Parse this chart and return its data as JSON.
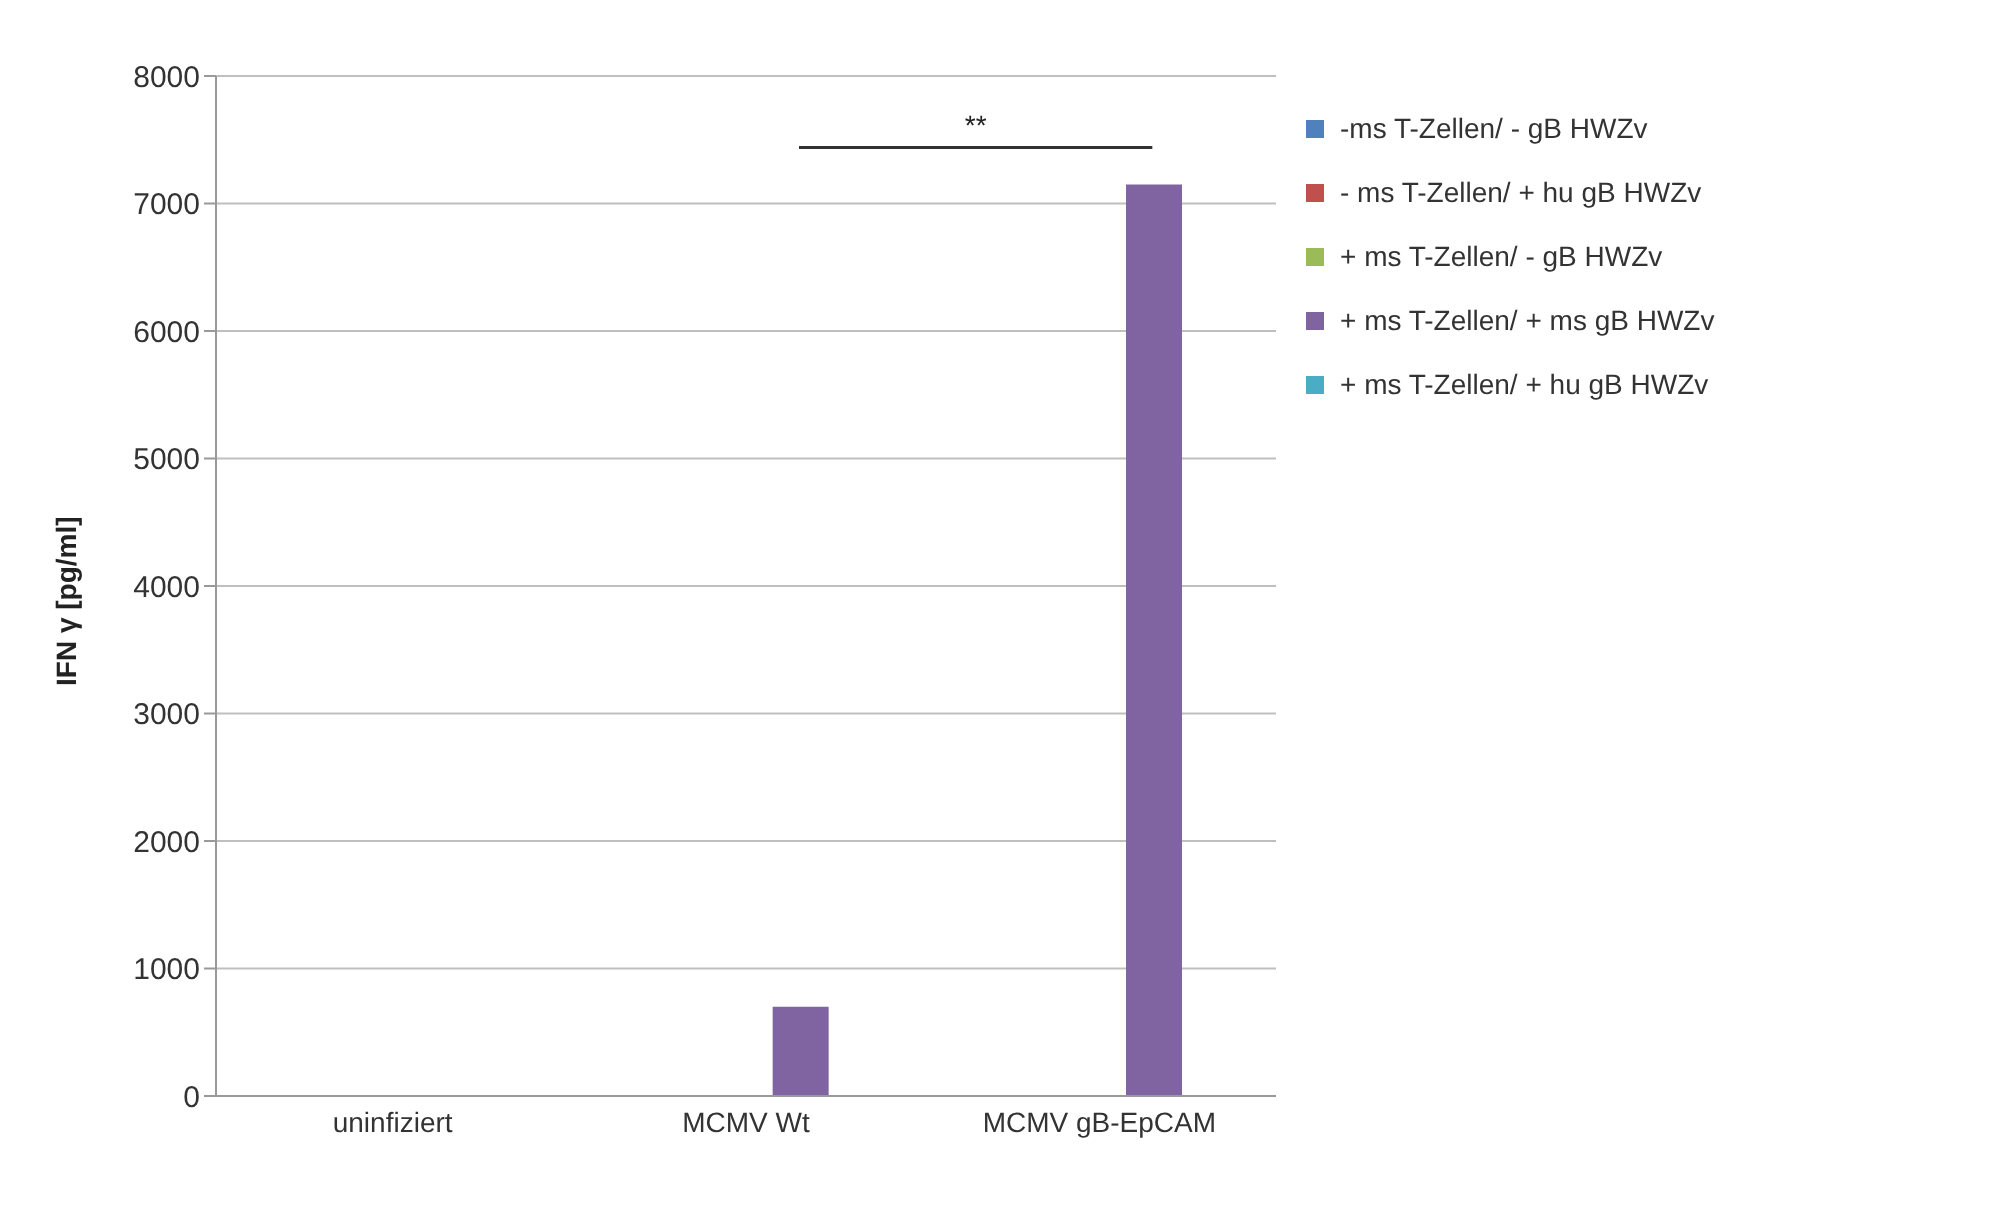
{
  "chart_data": {
    "type": "bar",
    "ylabel": "IFN γ [pg/ml]",
    "categories": [
      "uninfiziert",
      "MCMV Wt",
      "MCMV gB-EpCAM"
    ],
    "series": [
      {
        "name": "-ms  T-Zellen/ - gB HWZv",
        "color": "#4f81bd",
        "values": [
          0,
          0,
          0
        ]
      },
      {
        "name": "- ms T-Zellen/ + hu gB HWZv",
        "color": "#c0504d",
        "values": [
          0,
          0,
          0
        ]
      },
      {
        "name": "+ ms T-Zellen/ - gB HWZv",
        "color": "#9bbb59",
        "values": [
          0,
          0,
          0
        ]
      },
      {
        "name": "+ ms T-Zellen/ + ms gB HWZv",
        "color": "#8064a2",
        "values": [
          0,
          700,
          7150
        ]
      },
      {
        "name": "+ ms T-Zellen/ + hu gB HWZv",
        "color": "#4bacc6",
        "values": [
          0,
          0,
          0
        ]
      }
    ],
    "ylim": [
      0,
      8000
    ],
    "yticks": [
      0,
      1000,
      2000,
      3000,
      4000,
      5000,
      6000,
      7000,
      8000
    ],
    "grid": "y",
    "legend": "top right",
    "annotations": [
      "**"
    ]
  }
}
